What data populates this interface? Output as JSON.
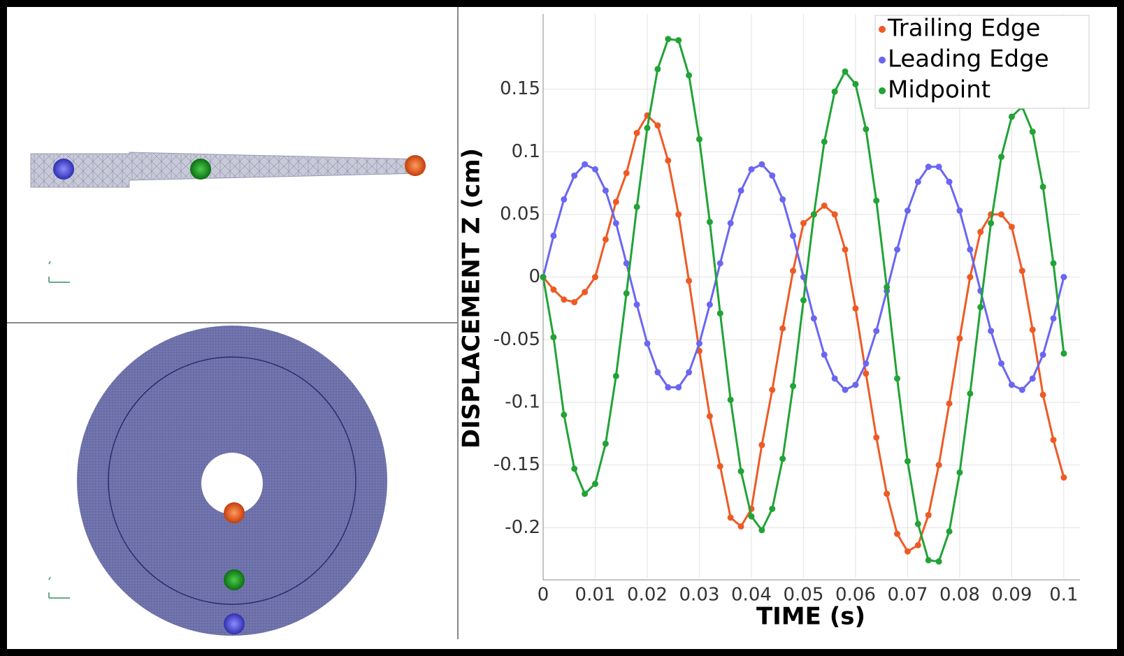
{
  "chart_data": {
    "type": "line",
    "xlabel": "TIME (s)",
    "ylabel": "DISPLACEMENT Z (cm)",
    "x": [
      0,
      0.002,
      0.004,
      0.006,
      0.008,
      0.01,
      0.012,
      0.014,
      0.016,
      0.018,
      0.02,
      0.022,
      0.024,
      0.026,
      0.028,
      0.03,
      0.032,
      0.034,
      0.036,
      0.038,
      0.04,
      0.042,
      0.044,
      0.046,
      0.048,
      0.05,
      0.052,
      0.054,
      0.056,
      0.058,
      0.06,
      0.062,
      0.064,
      0.066,
      0.068,
      0.07,
      0.072,
      0.074,
      0.076,
      0.078,
      0.08,
      0.082,
      0.084,
      0.086,
      0.088,
      0.09,
      0.092,
      0.094,
      0.096,
      0.098,
      0.1
    ],
    "series": [
      {
        "name": "Trailing Edge",
        "color": "#ee5a24",
        "values": [
          0,
          -0.01,
          -0.018,
          -0.02,
          -0.012,
          0.0,
          0.03,
          0.06,
          0.083,
          0.115,
          0.129,
          0.121,
          0.093,
          0.05,
          -0.003,
          -0.059,
          -0.111,
          -0.151,
          -0.192,
          -0.199,
          -0.185,
          -0.134,
          -0.09,
          -0.041,
          0.005,
          0.043,
          0.05,
          0.057,
          0.05,
          0.022,
          -0.025,
          -0.077,
          -0.128,
          -0.173,
          -0.205,
          -0.219,
          -0.214,
          -0.19,
          -0.15,
          -0.101,
          -0.049,
          0.0,
          0.036,
          0.05,
          0.05,
          0.04,
          0.005,
          -0.042,
          -0.094,
          -0.13,
          -0.16
        ]
      },
      {
        "name": "Leading Edge",
        "color": "#6a66f2",
        "values": [
          0,
          0.033,
          0.062,
          0.081,
          0.09,
          0.086,
          0.069,
          0.043,
          0.011,
          -0.022,
          -0.053,
          -0.076,
          -0.088,
          -0.088,
          -0.076,
          -0.053,
          -0.022,
          0.011,
          0.043,
          0.069,
          0.086,
          0.09,
          0.081,
          0.062,
          0.033,
          0,
          -0.033,
          -0.062,
          -0.081,
          -0.09,
          -0.086,
          -0.069,
          -0.043,
          -0.011,
          0.022,
          0.053,
          0.076,
          0.088,
          0.088,
          0.076,
          0.053,
          0.022,
          -0.011,
          -0.043,
          -0.069,
          -0.086,
          -0.09,
          -0.081,
          -0.062,
          -0.033,
          0
        ]
      },
      {
        "name": "Midpoint",
        "color": "#21a336",
        "values": [
          0,
          -0.048,
          -0.11,
          -0.153,
          -0.173,
          -0.165,
          -0.133,
          -0.079,
          -0.013,
          0.056,
          0.119,
          0.166,
          0.19,
          0.189,
          0.161,
          0.11,
          0.044,
          -0.029,
          -0.098,
          -0.155,
          -0.191,
          -0.202,
          -0.185,
          -0.145,
          -0.087,
          -0.0185,
          0.05,
          0.108,
          0.148,
          0.164,
          0.154,
          0.118,
          0.061,
          -0.008,
          -0.081,
          -0.147,
          -0.197,
          -0.226,
          -0.227,
          -0.203,
          -0.156,
          -0.093,
          -0.024,
          0.043,
          0.096,
          0.128,
          0.136,
          0.116,
          0.072,
          0.011,
          -0.061
        ]
      }
    ],
    "xlim": [
      0,
      0.1031
    ],
    "ylim": [
      -0.24,
      0.21
    ],
    "xticks": [
      0,
      0.01,
      0.02,
      0.03,
      0.04,
      0.05,
      0.06,
      0.07,
      0.08,
      0.09,
      0.1
    ],
    "yticks": [
      -0.2,
      -0.15,
      -0.1,
      -0.05,
      0,
      0.05,
      0.1,
      0.15
    ],
    "grid": true,
    "legend": "upper-right"
  }
}
